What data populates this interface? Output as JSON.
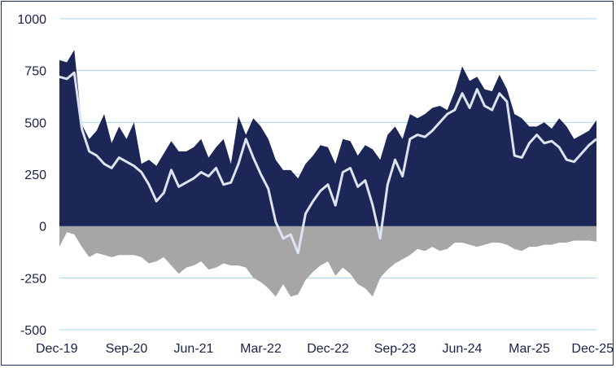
{
  "chart_data": {
    "type": "area",
    "title": "",
    "xlabel": "",
    "ylabel": "",
    "ylim": [
      -500,
      1000
    ],
    "yticks": [
      1000,
      750,
      500,
      250,
      0,
      -250,
      -500
    ],
    "ytick_labels": [
      "1000",
      "750",
      "500",
      "250",
      "0",
      "-250",
      "-500"
    ],
    "xtick_labels": [
      "Dec-19",
      "Sep-20",
      "Jun-21",
      "Mar-22",
      "Dec-22",
      "Sep-23",
      "Jun-24",
      "Mar-25",
      "Dec-25"
    ],
    "grid": true,
    "legend": "none",
    "colors": {
      "positive_area": "#1c2657",
      "negative_area": "#a6a6a6",
      "net_line": "#dde3ef",
      "grid": "#a9d3ea",
      "axis_text": "#1a2248"
    },
    "x": [
      "Dec-19",
      "Jan-20",
      "Feb-20",
      "Mar-20",
      "Apr-20",
      "May-20",
      "Jun-20",
      "Jul-20",
      "Aug-20",
      "Sep-20",
      "Oct-20",
      "Nov-20",
      "Dec-20",
      "Jan-21",
      "Feb-21",
      "Mar-21",
      "Apr-21",
      "May-21",
      "Jun-21",
      "Jul-21",
      "Aug-21",
      "Sep-21",
      "Oct-21",
      "Nov-21",
      "Dec-21",
      "Jan-22",
      "Feb-22",
      "Mar-22",
      "Apr-22",
      "May-22",
      "Jun-22",
      "Jul-22",
      "Aug-22",
      "Sep-22",
      "Oct-22",
      "Nov-22",
      "Dec-22",
      "Jan-23",
      "Feb-23",
      "Mar-23",
      "Apr-23",
      "May-23",
      "Jun-23",
      "Jul-23",
      "Aug-23",
      "Sep-23",
      "Oct-23",
      "Nov-23",
      "Dec-23",
      "Jan-24",
      "Feb-24",
      "Mar-24",
      "Apr-24",
      "May-24",
      "Jun-24",
      "Jul-24",
      "Aug-24",
      "Sep-24",
      "Oct-24",
      "Nov-24",
      "Dec-24",
      "Jan-25",
      "Feb-25",
      "Mar-25",
      "Apr-25",
      "May-25",
      "Jun-25",
      "Jul-25",
      "Aug-25",
      "Sep-25",
      "Oct-25",
      "Nov-25",
      "Dec-25"
    ],
    "series": [
      {
        "values": [
          800,
          790,
          850,
          490,
          420,
          460,
          540,
          400,
          480,
          420,
          500,
          300,
          320,
          290,
          350,
          410,
          360,
          360,
          380,
          420,
          330,
          380,
          420,
          300,
          530,
          440,
          520,
          480,
          420,
          320,
          270,
          270,
          230,
          300,
          340,
          390,
          380,
          300,
          420,
          410,
          340,
          390,
          370,
          320,
          440,
          480,
          420,
          540,
          520,
          540,
          570,
          580,
          560,
          650,
          770,
          700,
          720,
          660,
          650,
          730,
          660,
          540,
          520,
          480,
          480,
          500,
          470,
          520,
          480,
          420,
          440,
          460,
          510
        ]
      },
      {
        "values": [
          -100,
          -30,
          -40,
          -100,
          -150,
          -130,
          -140,
          -150,
          -140,
          -140,
          -140,
          -150,
          -180,
          -170,
          -150,
          -190,
          -230,
          -200,
          -190,
          -170,
          -210,
          -200,
          -180,
          -190,
          -190,
          -200,
          -250,
          -270,
          -300,
          -340,
          -280,
          -340,
          -330,
          -260,
          -220,
          -190,
          -170,
          -240,
          -200,
          -230,
          -280,
          -300,
          -340,
          -250,
          -210,
          -180,
          -160,
          -140,
          -110,
          -120,
          -100,
          -120,
          -110,
          -80,
          -80,
          -90,
          -100,
          -90,
          -80,
          -80,
          -90,
          -110,
          -120,
          -100,
          -100,
          -90,
          -90,
          -80,
          -80,
          -70,
          -70,
          -70,
          -75
        ]
      },
      {
        "values": [
          720,
          710,
          740,
          470,
          360,
          340,
          300,
          280,
          330,
          310,
          290,
          260,
          200,
          120,
          160,
          270,
          190,
          210,
          230,
          260,
          240,
          280,
          200,
          210,
          300,
          420,
          330,
          250,
          180,
          20,
          -60,
          -40,
          -130,
          60,
          120,
          170,
          200,
          100,
          260,
          280,
          190,
          220,
          100,
          -60,
          200,
          320,
          240,
          420,
          440,
          430,
          460,
          500,
          540,
          560,
          640,
          570,
          660,
          580,
          560,
          640,
          600,
          340,
          330,
          400,
          440,
          400,
          410,
          380,
          320,
          310,
          350,
          390,
          420
        ]
      }
    ]
  }
}
